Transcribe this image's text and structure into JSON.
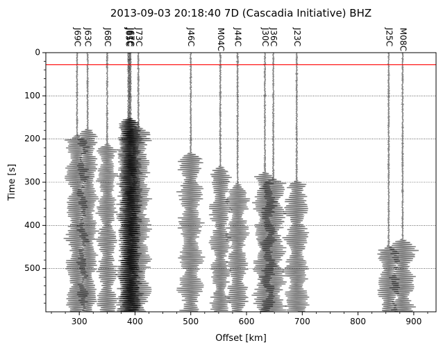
{
  "chart_data": {
    "type": "record-section",
    "title": "2013-09-03 20:18:40 7D (Cascadia Initiative) BHZ",
    "xlabel": "Offset [km]",
    "ylabel": "Time [s]",
    "xlim": [
      240,
      940
    ],
    "ylim": [
      600,
      0
    ],
    "x_ticks": [
      300,
      400,
      500,
      600,
      700,
      800,
      900
    ],
    "y_ticks": [
      0,
      100,
      200,
      300,
      400,
      500
    ],
    "y_grid": [
      100,
      200,
      300,
      400,
      500
    ],
    "reference_line": {
      "time": 28,
      "color": "#ff0000"
    },
    "trace_color": "#000000",
    "traces": [
      {
        "station": "J69C",
        "offset": 296,
        "onset": 190,
        "amp": 20
      },
      {
        "station": "J63C",
        "offset": 315,
        "onset": 175,
        "amp": 18
      },
      {
        "station": "J68C",
        "offset": 350,
        "onset": 210,
        "amp": 18
      },
      {
        "station": "J65C",
        "offset": 388,
        "onset": 150,
        "amp": 20
      },
      {
        "station": "J61C",
        "offset": 390,
        "onset": 150,
        "amp": 20
      },
      {
        "station": "J67C",
        "offset": 392,
        "onset": 150,
        "amp": 20
      },
      {
        "station": "J73C",
        "offset": 406,
        "onset": 170,
        "amp": 22
      },
      {
        "station": "J46C",
        "offset": 500,
        "onset": 230,
        "amp": 22
      },
      {
        "station": "M04C",
        "offset": 553,
        "onset": 260,
        "amp": 18
      },
      {
        "station": "J44C",
        "offset": 584,
        "onset": 300,
        "amp": 20
      },
      {
        "station": "J30C",
        "offset": 633,
        "onset": 275,
        "amp": 20
      },
      {
        "station": "J36C",
        "offset": 648,
        "onset": 290,
        "amp": 22
      },
      {
        "station": "J23C",
        "offset": 690,
        "onset": 295,
        "amp": 22
      },
      {
        "station": "J25C",
        "offset": 855,
        "onset": 445,
        "amp": 20
      },
      {
        "station": "M08C",
        "offset": 880,
        "onset": 430,
        "amp": 24
      }
    ]
  }
}
